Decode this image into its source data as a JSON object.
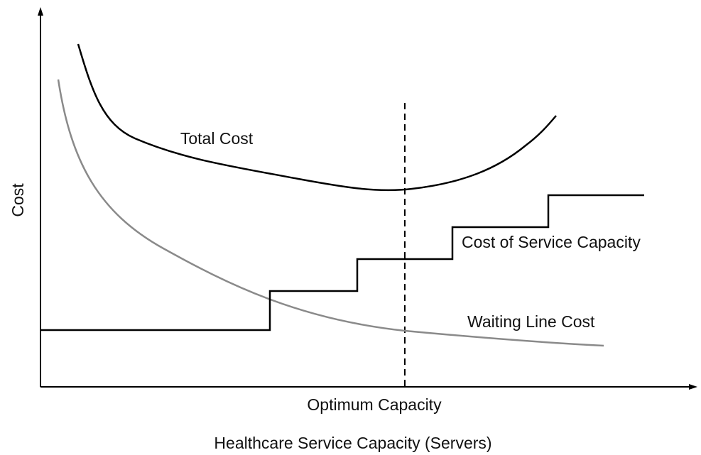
{
  "axis_labels": {
    "y": "Cost",
    "x": "Healthcare Service Capacity (Servers)"
  },
  "curves": {
    "total": "Total Cost",
    "service": "Cost of Service Capacity",
    "waiting": "Waiting Line Cost"
  },
  "marker": "Optimum Capacity"
}
